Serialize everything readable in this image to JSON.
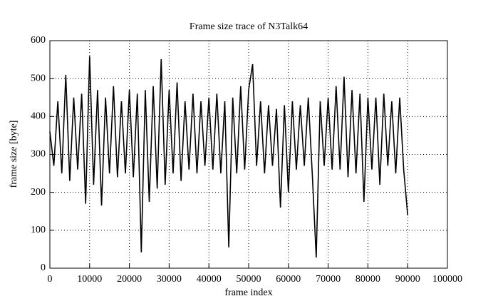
{
  "chart_data": {
    "type": "line",
    "title": "Frame size trace of N3Talk64",
    "x_label": "frame index",
    "y_label": "frame size [byte]",
    "x": [
      0,
      1000,
      2000,
      3000,
      4000,
      5000,
      6000,
      7000,
      8000,
      9000,
      10000,
      11000,
      12000,
      13000,
      14000,
      15000,
      16000,
      17000,
      18000,
      19000,
      20000,
      21000,
      22000,
      23000,
      24000,
      25000,
      26000,
      27000,
      28000,
      29000,
      30000,
      31000,
      32000,
      33000,
      34000,
      35000,
      36000,
      37000,
      38000,
      39000,
      40000,
      41000,
      42000,
      43000,
      44000,
      45000,
      46000,
      47000,
      48000,
      49000,
      50000,
      51000,
      52000,
      53000,
      54000,
      55000,
      56000,
      57000,
      58000,
      59000,
      60000,
      61000,
      62000,
      63000,
      64000,
      65000,
      66000,
      67000,
      68000,
      69000,
      70000,
      71000,
      72000,
      73000,
      74000,
      75000,
      76000,
      77000,
      78000,
      79000,
      80000,
      81000,
      82000,
      83000,
      84000,
      85000,
      86000,
      87000,
      88000,
      89000,
      90000
    ],
    "series": [
      {
        "name": "N3Talk64",
        "color": "#000000",
        "values": [
          360,
          270,
          440,
          250,
          510,
          230,
          450,
          260,
          460,
          170,
          559,
          220,
          470,
          165,
          450,
          250,
          480,
          240,
          440,
          250,
          470,
          240,
          460,
          42,
          470,
          175,
          480,
          210,
          551,
          220,
          470,
          250,
          490,
          230,
          440,
          260,
          460,
          250,
          440,
          270,
          450,
          260,
          460,
          250,
          440,
          55,
          450,
          250,
          480,
          260,
          470,
          538,
          270,
          440,
          250,
          430,
          270,
          420,
          160,
          430,
          200,
          440,
          260,
          430,
          270,
          450,
          250,
          28,
          440,
          270,
          450,
          260,
          480,
          260,
          505,
          240,
          470,
          250,
          460,
          175,
          450,
          260,
          450,
          220,
          460,
          270,
          440,
          250,
          450,
          260,
          140
        ]
      }
    ],
    "xlim": [
      0,
      100000
    ],
    "ylim": [
      0,
      600
    ],
    "xticks": [
      0,
      10000,
      20000,
      30000,
      40000,
      50000,
      60000,
      70000,
      80000,
      90000,
      100000
    ],
    "yticks": [
      0,
      100,
      200,
      300,
      400,
      500,
      600
    ],
    "grid": true
  }
}
